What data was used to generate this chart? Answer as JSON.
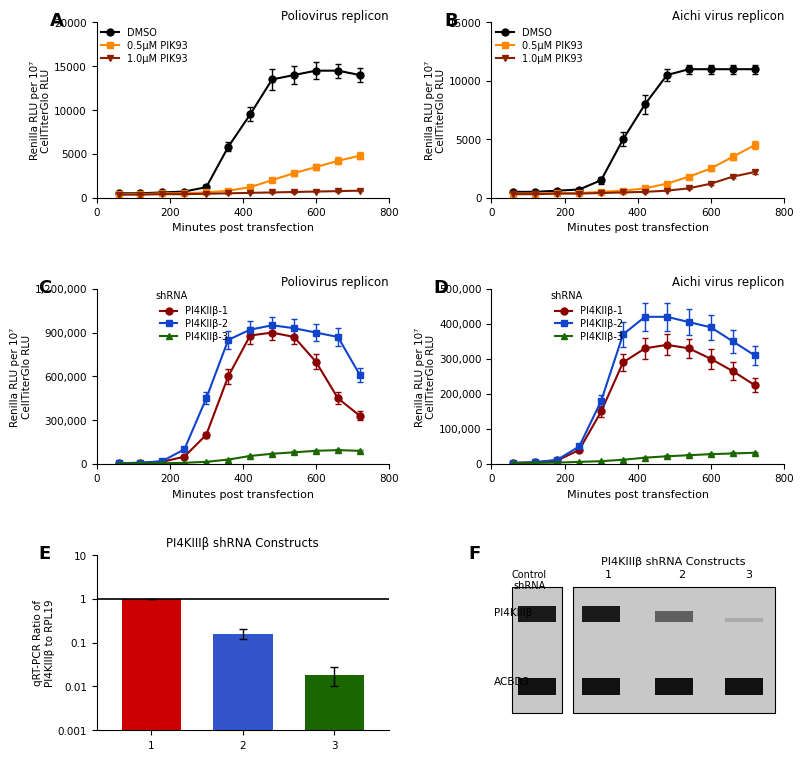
{
  "panel_A": {
    "title": "Poliovirus replicon",
    "xlabel": "Minutes post transfection",
    "ylabel": "Renilla RLU per 10⁷\nCellTiterGlo RLU",
    "ylim": [
      0,
      20000
    ],
    "yticks": [
      0,
      5000,
      10000,
      15000,
      20000
    ],
    "xlim": [
      0,
      800
    ],
    "xticks": [
      0,
      200,
      400,
      600,
      800
    ],
    "x": [
      60,
      120,
      180,
      240,
      300,
      360,
      420,
      480,
      540,
      600,
      660,
      720
    ],
    "DMSO_y": [
      500,
      500,
      600,
      700,
      1200,
      5800,
      9500,
      13500,
      14000,
      14500,
      14500,
      14000
    ],
    "DMSO_err": [
      100,
      100,
      100,
      100,
      200,
      500,
      800,
      1200,
      1000,
      1000,
      800,
      800
    ],
    "PIK05_y": [
      400,
      400,
      500,
      500,
      600,
      800,
      1200,
      2000,
      2800,
      3500,
      4200,
      4800
    ],
    "PIK05_err": [
      50,
      50,
      80,
      80,
      100,
      100,
      150,
      200,
      300,
      350,
      400,
      400
    ],
    "PIK10_y": [
      350,
      350,
      400,
      400,
      450,
      500,
      550,
      600,
      650,
      700,
      750,
      800
    ],
    "PIK10_err": [
      50,
      50,
      50,
      50,
      50,
      50,
      50,
      60,
      60,
      70,
      70,
      80
    ],
    "legend": [
      "DMSO",
      "0.5μM PIK93",
      "1.0μM PIK93"
    ]
  },
  "panel_B": {
    "title": "Aichi virus replicon",
    "xlabel": "Minutes post transfection",
    "ylabel": "Renilla RLU per 10⁷\nCellTiterGlo RLU",
    "ylim": [
      0,
      15000
    ],
    "yticks": [
      0,
      5000,
      10000,
      15000
    ],
    "xlim": [
      0,
      800
    ],
    "xticks": [
      0,
      200,
      400,
      600,
      800
    ],
    "x": [
      60,
      120,
      180,
      240,
      300,
      360,
      420,
      480,
      540,
      600,
      660,
      720
    ],
    "DMSO_y": [
      500,
      500,
      600,
      700,
      1500,
      5000,
      8000,
      10500,
      11000,
      11000,
      11000,
      11000
    ],
    "DMSO_err": [
      100,
      100,
      100,
      100,
      300,
      600,
      800,
      500,
      400,
      400,
      400,
      400
    ],
    "PIK05_y": [
      350,
      350,
      400,
      400,
      500,
      600,
      800,
      1200,
      1800,
      2500,
      3500,
      4500
    ],
    "PIK05_err": [
      50,
      50,
      50,
      50,
      60,
      70,
      80,
      100,
      150,
      200,
      300,
      350
    ],
    "PIK10_y": [
      300,
      300,
      350,
      350,
      400,
      450,
      500,
      600,
      800,
      1200,
      1800,
      2200
    ],
    "PIK10_err": [
      50,
      50,
      50,
      50,
      50,
      50,
      60,
      70,
      80,
      100,
      150,
      200
    ],
    "legend": [
      "DMSO",
      "0.5μM PIK93",
      "1.0μM PIK93"
    ]
  },
  "panel_C": {
    "title": "Poliovirus replicon",
    "xlabel": "Minutes post transfection",
    "ylabel": "Renilla RLU per 10⁷\nCellTiterGlo RLU",
    "ylim": [
      0,
      1200000
    ],
    "yticks": [
      0,
      300000,
      600000,
      900000,
      1200000
    ],
    "xlim": [
      0,
      800
    ],
    "xticks": [
      0,
      200,
      400,
      600,
      800
    ],
    "x": [
      60,
      120,
      180,
      240,
      300,
      360,
      420,
      480,
      540,
      600,
      660,
      720
    ],
    "shRNA1_y": [
      5000,
      8000,
      15000,
      50000,
      200000,
      600000,
      880000,
      900000,
      870000,
      700000,
      450000,
      330000
    ],
    "shRNA1_err": [
      500,
      800,
      1500,
      5000,
      20000,
      50000,
      60000,
      50000,
      50000,
      50000,
      40000,
      30000
    ],
    "shRNA2_y": [
      5000,
      8000,
      20000,
      100000,
      450000,
      850000,
      920000,
      950000,
      930000,
      900000,
      870000,
      610000
    ],
    "shRNA2_err": [
      500,
      800,
      2000,
      10000,
      40000,
      60000,
      60000,
      60000,
      60000,
      60000,
      60000,
      50000
    ],
    "shRNA3_y": [
      3000,
      4000,
      5000,
      8000,
      15000,
      30000,
      55000,
      70000,
      80000,
      90000,
      95000,
      90000
    ],
    "shRNA3_err": [
      300,
      400,
      500,
      800,
      1500,
      3000,
      5000,
      7000,
      8000,
      9000,
      9000,
      9000
    ],
    "legend": [
      "PI4KIIβ-1",
      "PI4KIIβ-2",
      "PI4KIIβ-3"
    ]
  },
  "panel_D": {
    "title": "Aichi virus replicon",
    "xlabel": "Minutes post transfection",
    "ylabel": "Renilla RLU per 10⁷\nCellTiterGlo RLU",
    "ylim": [
      0,
      500000
    ],
    "yticks": [
      0,
      100000,
      200000,
      300000,
      400000,
      500000
    ],
    "xlim": [
      0,
      800
    ],
    "xticks": [
      0,
      200,
      400,
      600,
      800
    ],
    "x": [
      60,
      120,
      180,
      240,
      300,
      360,
      420,
      480,
      540,
      600,
      660,
      720
    ],
    "shRNA1_y": [
      3000,
      5000,
      10000,
      40000,
      150000,
      290000,
      330000,
      340000,
      330000,
      300000,
      265000,
      225000
    ],
    "shRNA1_err": [
      300,
      500,
      1000,
      4000,
      15000,
      25000,
      30000,
      30000,
      28000,
      28000,
      25000,
      20000
    ],
    "shRNA2_y": [
      3000,
      5000,
      12000,
      50000,
      180000,
      370000,
      420000,
      420000,
      405000,
      390000,
      350000,
      310000
    ],
    "shRNA2_err": [
      300,
      500,
      1200,
      5000,
      18000,
      35000,
      40000,
      40000,
      38000,
      35000,
      32000,
      28000
    ],
    "shRNA3_y": [
      2000,
      3000,
      4000,
      6000,
      8000,
      12000,
      18000,
      22000,
      25000,
      28000,
      30000,
      32000
    ],
    "shRNA3_err": [
      200,
      300,
      400,
      600,
      800,
      1200,
      1800,
      2200,
      2500,
      2800,
      3000,
      3200
    ],
    "legend": [
      "PI4KIIβ-1",
      "PI4KIIβ-2",
      "PI4KIIβ-3"
    ]
  },
  "panel_E": {
    "title": "PI4KIIIβ shRNA Constructs",
    "xlabel": "",
    "ylabel": "qRT-PCR Ratio of\nPI4KIIIβ to RPL19",
    "categories": [
      "1",
      "2",
      "3"
    ],
    "values": [
      1.0,
      0.16,
      0.018
    ],
    "errors_lo": [
      0.02,
      0.04,
      0.008
    ],
    "errors_hi": [
      0.02,
      0.05,
      0.01
    ],
    "colors": [
      "#cc0000",
      "#3355cc",
      "#1a6600"
    ],
    "hline_y": 1.0
  },
  "colors": {
    "DMSO": "#000000",
    "PIK05": "#ff8800",
    "PIK10": "#8B2000",
    "shRNA1": "#8B0000",
    "shRNA2": "#1144CC",
    "shRNA3": "#1a6600"
  }
}
